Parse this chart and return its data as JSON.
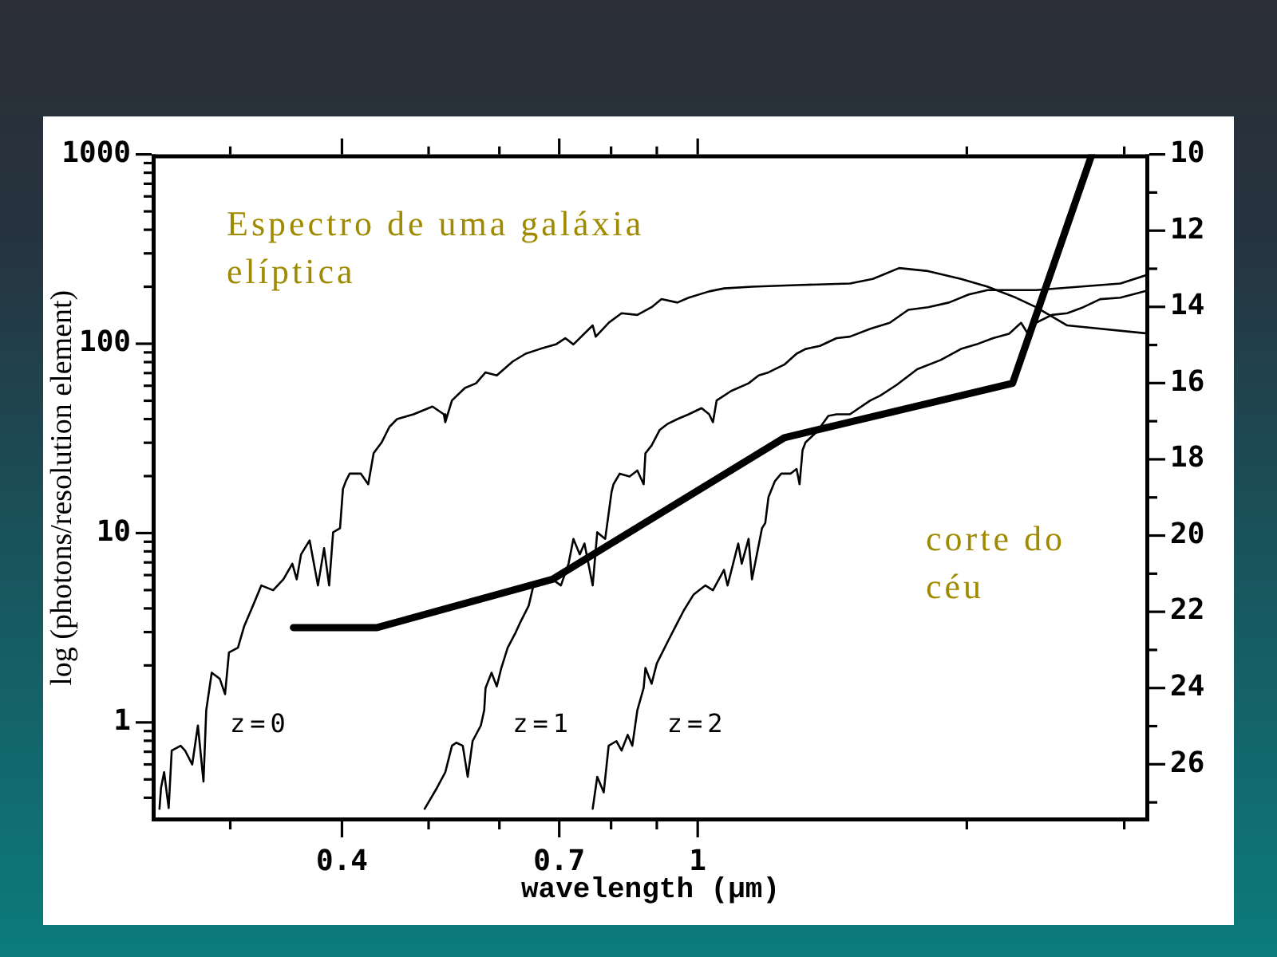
{
  "chart_data": {
    "type": "line",
    "title": "Espectro de uma galáxia elíptica",
    "xlabel": "wavelength (μm)",
    "ylabel": "log (photons/resolution element)",
    "log": "xy",
    "xlim": [
      0.245,
      3.2
    ],
    "xticks": [
      {
        "value": 0.3,
        "label": null
      },
      0.4,
      {
        "value": 0.5,
        "label": null
      },
      {
        "value": 0.6,
        "label": null
      },
      0.7,
      {
        "value": 0.8,
        "label": null
      },
      {
        "value": 0.9,
        "label": null
      },
      1,
      {
        "value": 2,
        "label": null
      },
      {
        "value": 3,
        "label": null
      }
    ],
    "ylim": [
      0.32,
      1000
    ],
    "yticks": [
      {
        "value": 0.4,
        "label": null
      },
      {
        "value": 0.5,
        "label": null
      },
      {
        "value": 0.6,
        "label": null
      },
      {
        "value": 0.7,
        "label": null
      },
      {
        "value": 0.8,
        "label": null
      },
      {
        "value": 0.9,
        "label": null
      },
      1,
      {
        "value": 2,
        "label": null
      },
      {
        "value": 3,
        "label": null
      },
      {
        "value": 4,
        "label": null
      },
      {
        "value": 5,
        "label": null
      },
      {
        "value": 6,
        "label": null
      },
      {
        "value": 7,
        "label": null
      },
      {
        "value": 8,
        "label": null
      },
      {
        "value": 9,
        "label": null
      },
      10,
      {
        "value": 20,
        "label": null
      },
      {
        "value": 30,
        "label": null
      },
      {
        "value": 40,
        "label": null
      },
      {
        "value": 50,
        "label": null
      },
      {
        "value": 60,
        "label": null
      },
      {
        "value": 70,
        "label": null
      },
      {
        "value": 80,
        "label": null
      },
      {
        "value": 90,
        "label": null
      },
      100,
      {
        "value": 200,
        "label": null
      },
      {
        "value": 300,
        "label": null
      },
      {
        "value": 400,
        "label": null
      },
      {
        "value": 500,
        "label": null
      },
      {
        "value": 600,
        "label": null
      },
      {
        "value": 700,
        "label": null
      },
      {
        "value": 800,
        "label": null
      },
      {
        "value": 900,
        "label": null
      },
      1000
    ],
    "y2lim": [
      27.5,
      10
    ],
    "y2ticks": [
      10,
      {
        "value": 11,
        "label": null
      },
      12,
      {
        "value": 13,
        "label": null
      },
      14,
      {
        "value": 15,
        "label": null
      },
      16,
      {
        "value": 17,
        "label": null
      },
      18,
      {
        "value": 19,
        "label": null
      },
      20,
      {
        "value": 21,
        "label": null
      },
      22,
      {
        "value": 23,
        "label": null
      },
      24,
      {
        "value": 25,
        "label": null
      },
      26,
      {
        "value": 27,
        "label": null
      }
    ],
    "annotations": [
      "corte do céu"
    ],
    "series": [
      {
        "name": "z=0",
        "color": "#000000",
        "x": [
          0.25,
          0.251,
          0.253,
          0.256,
          0.258,
          0.264,
          0.267,
          0.272,
          0.276,
          0.28,
          0.282,
          0.286,
          0.292,
          0.296,
          0.299,
          0.306,
          0.311,
          0.318,
          0.325,
          0.335,
          0.344,
          0.352,
          0.356,
          0.36,
          0.368,
          0.376,
          0.382,
          0.387,
          0.391,
          0.398,
          0.401,
          0.404,
          0.408,
          0.42,
          0.428,
          0.434,
          0.443,
          0.452,
          0.461,
          0.481,
          0.505,
          0.52,
          0.522,
          0.531,
          0.549,
          0.565,
          0.579,
          0.596,
          0.621,
          0.642,
          0.666,
          0.694,
          0.711,
          0.726,
          0.763,
          0.769,
          0.795,
          0.822,
          0.856,
          0.888,
          0.911,
          0.949,
          0.977,
          1.03,
          1.07,
          1.15,
          1.29,
          1.48,
          1.57,
          1.68,
          1.81,
          1.97,
          2.11,
          2.27,
          2.39,
          2.59,
          3.2
        ],
        "values": [
          0.35,
          0.452,
          0.546,
          0.353,
          0.711,
          0.753,
          0.711,
          0.6,
          0.963,
          0.487,
          1.16,
          1.83,
          1.7,
          1.41,
          2.34,
          2.48,
          3.23,
          4.13,
          5.29,
          4.99,
          5.7,
          6.89,
          5.7,
          7.72,
          9.15,
          5.29,
          8.32,
          5.29,
          10.1,
          10.6,
          17.1,
          18.8,
          20.6,
          20.6,
          18.1,
          26.4,
          30.1,
          36.4,
          40,
          42.4,
          46.6,
          42.4,
          38.5,
          50.2,
          58.4,
          61.8,
          70.6,
          68,
          80.6,
          88.6,
          93.8,
          99.2,
          107,
          99.2,
          125,
          109,
          129,
          145,
          142,
          156,
          172,
          165,
          175,
          189,
          196,
          200,
          204,
          208,
          220,
          251,
          242,
          220,
          200,
          175,
          156,
          125,
          113
        ]
      },
      {
        "name": "z=1",
        "color": "#000000",
        "x": [
          0.495,
          0.511,
          0.522,
          0.531,
          0.537,
          0.546,
          0.553,
          0.56,
          0.572,
          0.577,
          0.579,
          0.588,
          0.596,
          0.603,
          0.613,
          0.626,
          0.634,
          0.647,
          0.655,
          0.674,
          0.688,
          0.703,
          0.717,
          0.726,
          0.738,
          0.747,
          0.763,
          0.772,
          0.788,
          0.801,
          0.805,
          0.818,
          0.839,
          0.856,
          0.87,
          0.874,
          0.888,
          0.907,
          0.926,
          0.949,
          0.977,
          1.01,
          1.03,
          1.04,
          1.05,
          1.09,
          1.14,
          1.17,
          1.2,
          1.25,
          1.29,
          1.32,
          1.37,
          1.43,
          1.48,
          1.56,
          1.64,
          1.72,
          1.81,
          1.91,
          2.01,
          2.11,
          2.39,
          2.97,
          3.2
        ],
        "values": [
          0.35,
          0.452,
          0.546,
          0.753,
          0.782,
          0.753,
          0.516,
          0.797,
          0.963,
          1.16,
          1.52,
          1.83,
          1.55,
          1.94,
          2.48,
          3.0,
          3.42,
          4.13,
          5.29,
          5.49,
          5.7,
          5.29,
          6.89,
          9.32,
          7.72,
          8.81,
          5.29,
          10.1,
          9.32,
          16.5,
          18.1,
          20.6,
          19.9,
          21.4,
          18.1,
          26.4,
          29.0,
          35.1,
          37.8,
          40,
          42.4,
          45.7,
          42.4,
          38.5,
          50.2,
          56.3,
          61.8,
          68,
          70.6,
          77.6,
          88.6,
          93.8,
          97.4,
          107,
          109,
          120,
          129,
          151,
          156,
          165,
          182,
          192,
          192,
          208,
          233
        ]
      },
      {
        "name": "z=2",
        "color": "#000000",
        "x": [
          0.763,
          0.772,
          0.785,
          0.795,
          0.811,
          0.822,
          0.835,
          0.845,
          0.856,
          0.87,
          0.874,
          0.888,
          0.9,
          0.926,
          0.945,
          0.965,
          0.989,
          1.02,
          1.04,
          1.07,
          1.08,
          1.11,
          1.12,
          1.14,
          1.15,
          1.18,
          1.19,
          1.2,
          1.22,
          1.24,
          1.27,
          1.29,
          1.3,
          1.31,
          1.32,
          1.36,
          1.4,
          1.43,
          1.48,
          1.56,
          1.6,
          1.67,
          1.76,
          1.87,
          1.97,
          2.05,
          2.14,
          2.23,
          2.3,
          2.34,
          2.39,
          2.49,
          2.59,
          2.7,
          2.82,
          2.97,
          3.2
        ],
        "values": [
          0.35,
          0.516,
          0.427,
          0.753,
          0.797,
          0.711,
          0.86,
          0.753,
          1.16,
          1.52,
          1.94,
          1.6,
          2.05,
          2.68,
          3.23,
          3.91,
          4.72,
          5.29,
          4.99,
          6.39,
          5.29,
          8.81,
          6.89,
          9.32,
          5.7,
          10.6,
          11.3,
          15.5,
          18.8,
          20.6,
          20.6,
          21.8,
          18.1,
          27.4,
          30.1,
          34.4,
          41.6,
          42.4,
          42.4,
          50.2,
          53.2,
          60.7,
          73.3,
          82.1,
          93.8,
          99.2,
          107,
          113,
          129,
          113,
          129,
          142,
          145,
          156,
          172,
          175,
          192
        ]
      },
      {
        "color": "#000000",
        "x": [
          0.353,
          0.438,
          0.688,
          1.25,
          2.25,
          2.76
        ],
        "values": [
          3.17,
          3.17,
          5.7,
          31.9,
          61.8,
          1000
        ]
      }
    ]
  }
}
